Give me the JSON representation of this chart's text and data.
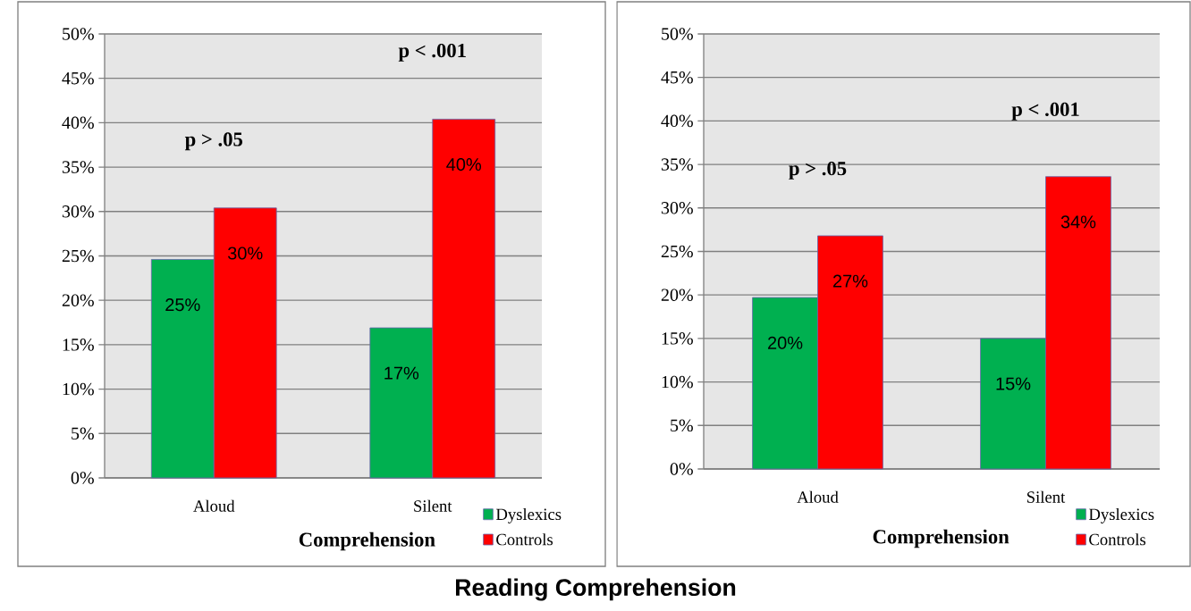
{
  "chart_data": [
    {
      "type": "bar",
      "title": "Reading Comprehension",
      "xlabel": "Comprehension",
      "categories": [
        "Aloud",
        "Silent"
      ],
      "series": [
        {
          "name": "Dyslexics",
          "color": "#00b050",
          "values": [
            24.6,
            16.9
          ],
          "value_labels": [
            "25%",
            "17%"
          ]
        },
        {
          "name": "Controls",
          "color": "#ff0000",
          "values": [
            30.4,
            40.4
          ],
          "value_labels": [
            "30%",
            "40%"
          ]
        }
      ],
      "ylim": [
        0,
        50
      ],
      "yticks": [
        {
          "value": 0,
          "label": "0%"
        },
        {
          "value": 5,
          "label": "5%"
        },
        {
          "value": 10,
          "label": "10%"
        },
        {
          "value": 15,
          "label": "15%"
        },
        {
          "value": 20,
          "label": "20%"
        },
        {
          "value": 25,
          "label": "25%"
        },
        {
          "value": 30,
          "label": "30%"
        },
        {
          "value": 35,
          "label": "35%"
        },
        {
          "value": 40,
          "label": "40%"
        },
        {
          "value": 45,
          "label": "45%"
        },
        {
          "value": 50,
          "label": "50%"
        }
      ],
      "grid": "y",
      "legend": "bottom right",
      "annotations": [
        "p > .05",
        "p < .001"
      ]
    },
    {
      "type": "bar",
      "xlabel": "Comprehension",
      "categories": [
        "Aloud",
        "Silent"
      ],
      "series": [
        {
          "name": "Dyslexics",
          "color": "#00b050",
          "values": [
            19.7,
            15.0
          ],
          "value_labels": [
            "20%",
            "15%"
          ]
        },
        {
          "name": "Controls",
          "color": "#ff0000",
          "values": [
            26.8,
            33.6
          ],
          "value_labels": [
            "27%",
            "34%"
          ]
        }
      ],
      "ylim": [
        0,
        50
      ],
      "yticks": [
        {
          "value": 0,
          "label": "0%"
        },
        {
          "value": 5,
          "label": "5%"
        },
        {
          "value": 10,
          "label": "10%"
        },
        {
          "value": 15,
          "label": "15%"
        },
        {
          "value": 20,
          "label": "20%"
        },
        {
          "value": 25,
          "label": "25%"
        },
        {
          "value": 30,
          "label": "30%"
        },
        {
          "value": 35,
          "label": "35%"
        },
        {
          "value": 40,
          "label": "40%"
        },
        {
          "value": 45,
          "label": "45%"
        },
        {
          "value": 50,
          "label": "50%"
        }
      ],
      "grid": "y",
      "legend": "bottom right",
      "annotations": [
        "p > .05",
        "p < .001"
      ]
    }
  ]
}
